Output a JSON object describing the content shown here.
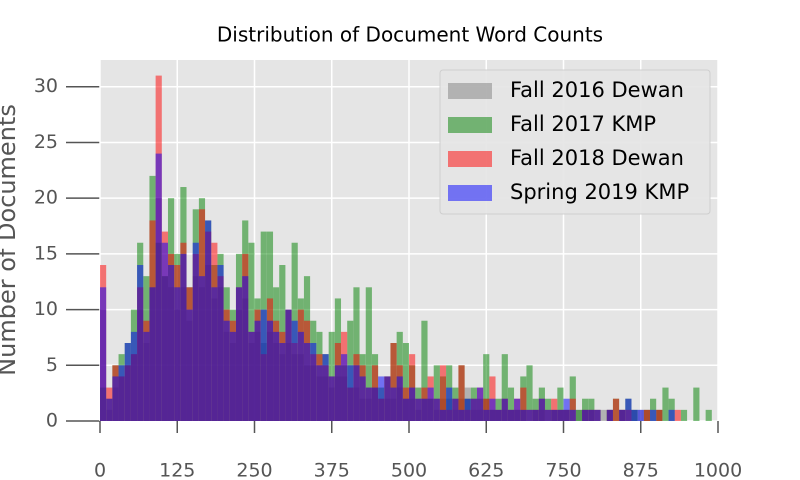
{
  "chart_data": {
    "type": "histogram",
    "title": "Distribution of Document Word Counts",
    "y_label": "Number of Documents",
    "bins": [
      0,
      10,
      20,
      30,
      40,
      50,
      60,
      70,
      80,
      90,
      100,
      110,
      120,
      130,
      140,
      150,
      160,
      170,
      180,
      190,
      200,
      210,
      220,
      230,
      240,
      250,
      260,
      270,
      280,
      290,
      300,
      310,
      320,
      330,
      340,
      350,
      360,
      370,
      380,
      390,
      400,
      410,
      420,
      430,
      440,
      450,
      460,
      470,
      480,
      490,
      500,
      510,
      520,
      530,
      540,
      550,
      560,
      570,
      580,
      590,
      600,
      610,
      620,
      630,
      640,
      650,
      660,
      670,
      680,
      690,
      700,
      710,
      720,
      730,
      740,
      750,
      760,
      770,
      780,
      790,
      800,
      810,
      820,
      830,
      840,
      850,
      860,
      870,
      880,
      890,
      900,
      910,
      920,
      930,
      940,
      950,
      960,
      970,
      980,
      990,
      1000
    ],
    "series": [
      {
        "name": "Fall 2016 Dewan",
        "color": "#808080",
        "values": [
          10,
          1,
          3,
          4,
          5,
          6,
          10,
          7,
          12,
          20,
          13,
          12,
          10,
          12,
          9,
          13,
          12,
          14,
          11,
          12,
          8,
          7,
          10,
          11,
          7,
          8,
          7,
          8,
          7,
          6,
          7,
          6,
          6,
          5,
          5,
          4,
          4,
          3,
          4,
          4,
          3,
          3,
          2,
          2,
          3,
          2,
          2,
          2,
          3,
          2,
          2,
          1,
          2,
          2,
          1,
          2,
          2,
          1,
          2,
          3,
          1,
          1,
          2,
          1,
          1,
          1,
          1,
          1,
          1,
          0,
          1,
          1,
          0,
          1,
          1,
          1,
          0,
          1,
          1,
          1,
          0,
          1,
          1,
          0,
          1,
          0,
          1,
          1,
          1,
          0,
          1,
          0,
          0,
          0,
          0,
          0,
          0,
          0,
          0,
          0
        ]
      },
      {
        "name": "Fall 2017 KMP",
        "color": "#008000",
        "values": [
          3,
          2,
          5,
          6,
          7,
          10,
          16,
          13,
          22,
          16,
          13,
          20,
          15,
          21,
          12,
          19,
          20,
          18,
          14,
          15,
          12,
          10,
          15,
          18,
          16,
          11,
          17,
          17,
          12,
          14,
          10,
          16,
          11,
          13,
          9,
          8,
          6,
          8,
          11,
          5,
          9,
          12,
          6,
          12,
          6,
          3,
          4,
          7,
          8,
          7,
          5,
          3,
          9,
          2,
          5,
          4,
          5,
          3,
          5,
          2,
          3,
          2,
          6,
          1,
          2,
          6,
          3,
          1,
          4,
          5,
          2,
          3,
          2,
          1,
          3,
          1,
          4,
          1,
          2,
          2,
          1,
          0,
          1,
          2,
          1,
          2,
          1,
          0,
          1,
          2,
          1,
          3,
          2,
          0,
          1,
          0,
          3,
          0,
          1,
          0
        ]
      },
      {
        "name": "Fall 2018 Dewan",
        "color": "#ff0000",
        "values": [
          14,
          3,
          5,
          4,
          5,
          6,
          12,
          9,
          18,
          31,
          17,
          15,
          14,
          16,
          12,
          15,
          19,
          17,
          16,
          13,
          10,
          9,
          12,
          15,
          8,
          10,
          6,
          11,
          9,
          8,
          10,
          7,
          10,
          9,
          6,
          6,
          5,
          4,
          7,
          8,
          3,
          6,
          5,
          3,
          5,
          2,
          4,
          7,
          5,
          3,
          6,
          2,
          3,
          4,
          2,
          5,
          1,
          2,
          5,
          1,
          2,
          3,
          2,
          4,
          1,
          2,
          1,
          2,
          3,
          1,
          1,
          2,
          1,
          2,
          1,
          1,
          2,
          0,
          1,
          1,
          1,
          0,
          1,
          2,
          1,
          1,
          0,
          0,
          1,
          0,
          1,
          0,
          0,
          1,
          0,
          0,
          0,
          0,
          0,
          0
        ]
      },
      {
        "name": "Spring 2019 KMP",
        "color": "#0000ff",
        "values": [
          12,
          2,
          4,
          5,
          7,
          8,
          14,
          8,
          12,
          24,
          16,
          14,
          12,
          15,
          10,
          16,
          13,
          18,
          12,
          14,
          9,
          8,
          12,
          13,
          8,
          9,
          10,
          9,
          8,
          7,
          10,
          9,
          8,
          7,
          7,
          5,
          6,
          4,
          5,
          6,
          5,
          5,
          4,
          3,
          3,
          4,
          4,
          3,
          4,
          2,
          3,
          2,
          2,
          3,
          2,
          1,
          3,
          2,
          1,
          2,
          2,
          3,
          1,
          2,
          1,
          2,
          1,
          2,
          1,
          1,
          1,
          2,
          1,
          1,
          1,
          2,
          1,
          0,
          1,
          1,
          1,
          0,
          1,
          0,
          1,
          2,
          1,
          1,
          0,
          1,
          0,
          0,
          1,
          0,
          0,
          0,
          0,
          0,
          0,
          0
        ]
      }
    ],
    "alpha": 0.5,
    "xlim": [
      0,
      1000
    ],
    "xticks": [
      0,
      125,
      250,
      375,
      500,
      625,
      750,
      875,
      1000
    ],
    "ylim": [
      0,
      32.4
    ],
    "yticks": [
      0,
      5,
      10,
      15,
      20,
      25,
      30
    ],
    "grid": true,
    "legend": "upper right"
  }
}
